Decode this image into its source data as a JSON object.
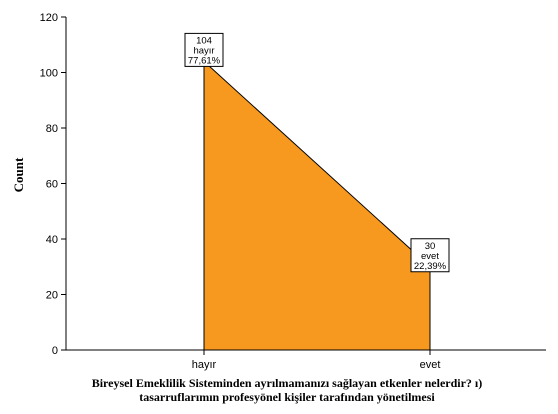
{
  "chart_data": {
    "type": "area",
    "categories": [
      "hayır",
      "evet"
    ],
    "values": [
      104,
      30
    ],
    "data_labels": [
      {
        "count": "104",
        "category": "hayır",
        "percent": "77,61%"
      },
      {
        "count": "30",
        "category": "evet",
        "percent": "22,39%"
      }
    ],
    "xlabel_lines": [
      "Bireysel Emeklilik Sisteminden ayrılmamanızı sağlayan etkenler nelerdir? ı)",
      "tasarruflarımın profesyönel kişiler tarafından yönetilmesi"
    ],
    "ylabel": "Count",
    "ylim": [
      0,
      120
    ],
    "yticks": [
      "0",
      "20",
      "40",
      "60",
      "80",
      "100",
      "120"
    ],
    "grid": false,
    "colors": {
      "area": "#f7991f",
      "outline": "#000000",
      "background": "#ffffff"
    }
  }
}
